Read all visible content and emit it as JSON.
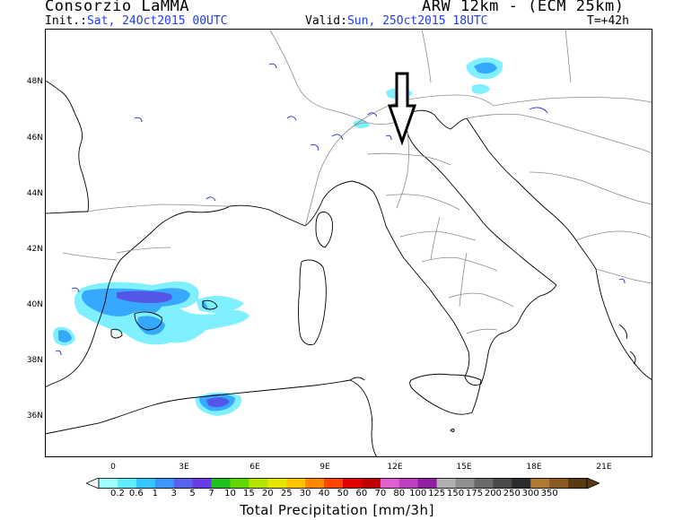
{
  "header": {
    "organization": "Consorzio LaMMA",
    "model": "ARW 12km - (ECM 25km)",
    "init_label": "Init.:",
    "init_value": "Sat, 24Oct2015 00UTC",
    "valid_label": "Valid:",
    "valid_value": "Sun, 25Oct2015 18UTC",
    "forecast_step": "T=+42h"
  },
  "map": {
    "lat_labels": [
      "48N",
      "46N",
      "44N",
      "42N",
      "40N",
      "38N",
      "36N"
    ],
    "lon_labels": [
      "0",
      "3E",
      "6E",
      "9E",
      "12E",
      "15E",
      "18E",
      "21E"
    ],
    "annotation": "down-arrow-marker",
    "coastline_color": "#000000",
    "border_color": "#8c8c8c",
    "precip_colors": {
      "light": "#7ef0ff",
      "medium": "#36a8ff",
      "heavy": "#5555e8"
    }
  },
  "colorbar": {
    "title": "Total Precipitation [mm/3h]",
    "labels": [
      "0.2",
      "0.6",
      "1",
      "3",
      "5",
      "7",
      "10",
      "15",
      "20",
      "25",
      "30",
      "40",
      "50",
      "60",
      "70",
      "80",
      "100",
      "125",
      "150",
      "175",
      "200",
      "250",
      "300",
      "350"
    ],
    "colors": [
      "#a0ffff",
      "#60ecff",
      "#36c6ff",
      "#3c96ff",
      "#5a62f0",
      "#6a3ce8",
      "#20c020",
      "#60d800",
      "#b4e400",
      "#e6e600",
      "#ffc400",
      "#ff8800",
      "#ff4400",
      "#e00000",
      "#c00000",
      "#e060d0",
      "#c040c0",
      "#9020a0",
      "#b0b0b0",
      "#909090",
      "#6a6a6a",
      "#4a4a4a",
      "#2c2c2c",
      "#b07830",
      "#8a5a20",
      "#5a3a14"
    ],
    "arrow_left_color": "#ffffff",
    "arrow_right_color": "#5a3a14"
  }
}
